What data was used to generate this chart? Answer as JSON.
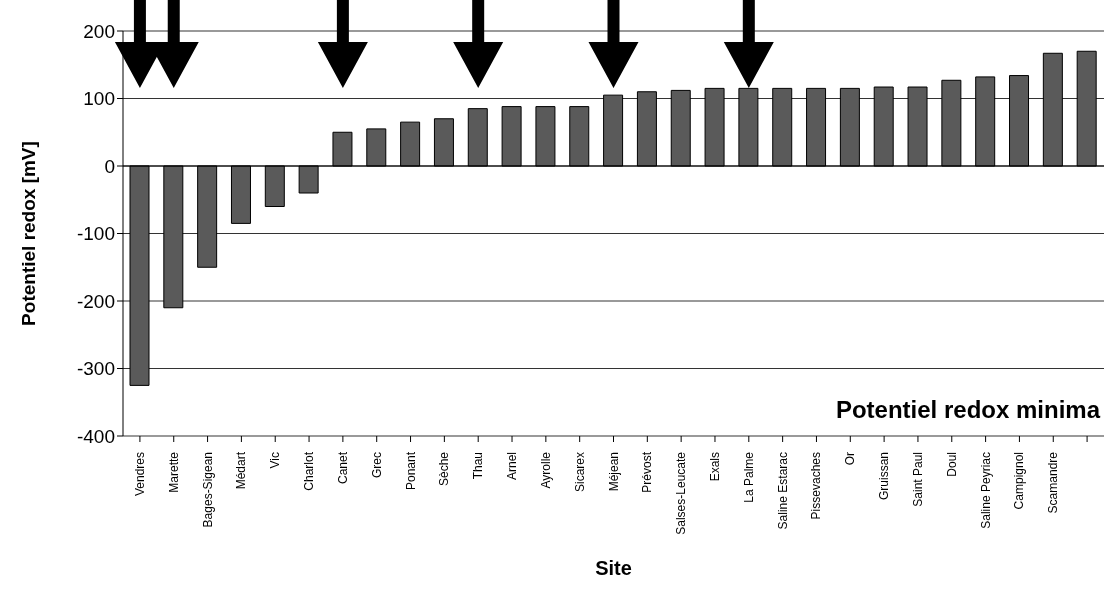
{
  "chart_data": {
    "type": "bar",
    "ylabel": "Potentiel redox  [mV]",
    "xlabel": "Site",
    "annotations": [
      "Potentiel redox minima"
    ],
    "categories": [
      "Vendres",
      "Marette",
      "Bages-Sigean",
      "Médart",
      "Vic",
      "Charlot",
      "Canet",
      "Grec",
      "Ponant",
      "Sèche",
      "Thau",
      "Arnel",
      "Ayrolle",
      "Sicarex",
      "Méjean",
      "Prévost",
      "Salses-Leucate",
      "Exals",
      "La Palme",
      "Saline Estarac",
      "Pissevaches",
      "Or",
      "Gruissan",
      "Saint Paul",
      "Doul",
      "Saline Peyriac",
      "Campignol",
      "Scamandre",
      null
    ],
    "values": [
      -325,
      -210,
      -150,
      -85,
      -60,
      -40,
      50,
      55,
      65,
      70,
      85,
      88,
      88,
      88,
      105,
      110,
      112,
      115,
      115,
      115,
      115,
      115,
      117,
      117,
      127,
      132,
      134,
      167,
      170
    ],
    "color": "#5a5a5a",
    "ylim": [
      -400,
      200
    ],
    "yticks": [
      -400,
      -300,
      -200,
      -100,
      0,
      100,
      200
    ],
    "grid": "y"
  }
}
